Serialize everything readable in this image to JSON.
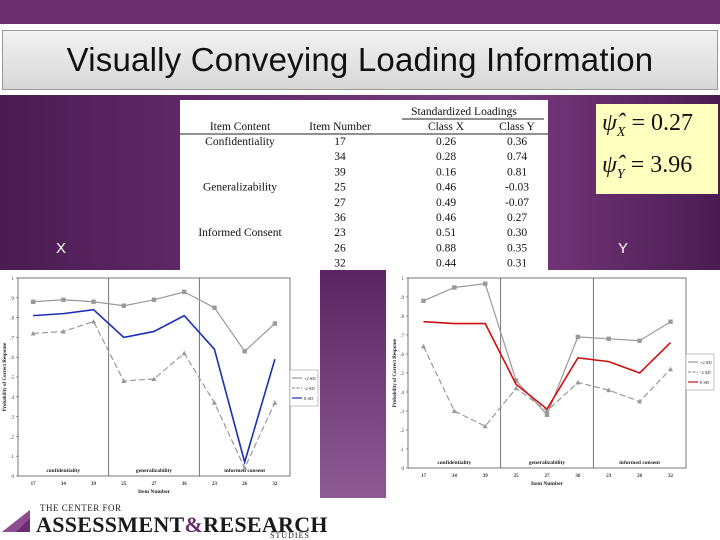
{
  "slide": {
    "title": "Visually Conveying Loading Information",
    "label_x": "X",
    "label_y": "Y"
  },
  "table": {
    "group_header": "Standardized Loadings",
    "headers": [
      "Item Content",
      "Item Number",
      "Class X",
      "Class Y"
    ],
    "rows": [
      {
        "content": "Confidentiality",
        "item": "17",
        "x": "0.26",
        "y": "0.36"
      },
      {
        "content": "",
        "item": "34",
        "x": "0.28",
        "y": "0.74"
      },
      {
        "content": "",
        "item": "39",
        "x": "0.16",
        "y": "0.81"
      },
      {
        "content": "Generalizability",
        "item": "25",
        "x": "0.46",
        "y": "-0.03"
      },
      {
        "content": "",
        "item": "27",
        "x": "0.49",
        "y": "-0.07"
      },
      {
        "content": "",
        "item": "36",
        "x": "0.46",
        "y": "0.27"
      },
      {
        "content": "Informed Consent",
        "item": "23",
        "x": "0.51",
        "y": "0.30"
      },
      {
        "content": "",
        "item": "26",
        "x": "0.88",
        "y": "0.35"
      },
      {
        "content": "",
        "item": "32",
        "x": "0.44",
        "y": "0.31"
      }
    ]
  },
  "formulas": {
    "x_symbol": "ψ̂",
    "x_sub": "X",
    "x_value": "= 0.27",
    "y_symbol": "ψ̂",
    "y_sub": "Y",
    "y_value": "= 3.96"
  },
  "footer": {
    "line1": "THE CENTER FOR",
    "line2a": "ASSESSMENT",
    "line2amp": "&",
    "line2b": "RESEARCH",
    "line3": "STUDIES",
    "colors": {
      "brand": "#6b2d6e"
    }
  },
  "chart_data": [
    {
      "type": "line",
      "x": [
        "17",
        "34",
        "39",
        "25",
        "27",
        "36",
        "23",
        "26",
        "32"
      ],
      "xlabel": "Item Number",
      "ylabel": "Probability of Correct Response",
      "ylim": [
        0,
        1
      ],
      "yticks": [
        "0",
        ".1",
        ".2",
        ".3",
        ".4",
        ".5",
        ".6",
        ".7",
        ".8",
        ".9",
        "1"
      ],
      "regions": [
        "confidentiality",
        "generalizability",
        "informed consent"
      ],
      "legend_position": "right",
      "series": [
        {
          "name": "+2 SD",
          "color": "#999999",
          "dash": "solid",
          "marker": "square",
          "values": [
            0.88,
            0.89,
            0.88,
            0.86,
            0.89,
            0.93,
            0.85,
            0.63,
            0.77
          ]
        },
        {
          "name": "-2 SD",
          "color": "#999999",
          "dash": "dashed",
          "marker": "triangle",
          "values": [
            0.72,
            0.73,
            0.78,
            0.48,
            0.49,
            0.62,
            0.37,
            0.04,
            0.37
          ]
        },
        {
          "name": "0 SD",
          "color": "#1a2fb5",
          "dash": "solid",
          "marker": "none",
          "values": [
            0.81,
            0.82,
            0.84,
            0.7,
            0.73,
            0.81,
            0.64,
            0.07,
            0.59
          ]
        }
      ]
    },
    {
      "type": "line",
      "x": [
        "17",
        "34",
        "39",
        "25",
        "27",
        "36",
        "23",
        "26",
        "32"
      ],
      "xlabel": "Item Number",
      "ylabel": "Probability of Correct Response",
      "ylim": [
        0,
        1
      ],
      "yticks": [
        "0",
        ".1",
        ".2",
        ".3",
        ".4",
        ".5",
        ".6",
        ".7",
        ".8",
        ".9",
        "1"
      ],
      "regions": [
        "confidentiality",
        "generalizability",
        "informed consent"
      ],
      "legend_position": "right",
      "series": [
        {
          "name": "+2 SD",
          "color": "#999999",
          "dash": "solid",
          "marker": "square",
          "values": [
            0.88,
            0.95,
            0.97,
            0.46,
            0.28,
            0.69,
            0.68,
            0.67,
            0.77
          ]
        },
        {
          "name": "-2 SD",
          "color": "#999999",
          "dash": "dashed",
          "marker": "triangle",
          "values": [
            0.64,
            0.3,
            0.22,
            0.42,
            0.3,
            0.45,
            0.41,
            0.35,
            0.52
          ]
        },
        {
          "name": "0 SD",
          "color": "#d01010",
          "dash": "solid",
          "marker": "none",
          "values": [
            0.77,
            0.76,
            0.76,
            0.44,
            0.31,
            0.58,
            0.56,
            0.5,
            0.66
          ]
        }
      ]
    }
  ]
}
